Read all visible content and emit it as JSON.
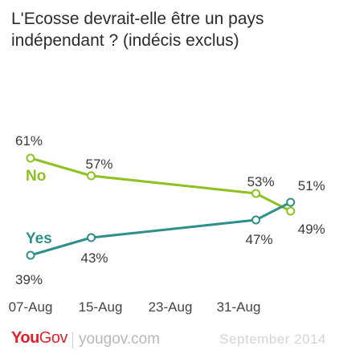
{
  "title_line1": "L'Ecosse devrait-elle être un pays",
  "title_line2": "indépendant ? (indécis exclus)",
  "chart_data": {
    "type": "line",
    "title": "L'Ecosse devrait-elle être un pays indépendant ? (indécis exclus)",
    "x": [
      "2014-08-07",
      "2014-08-14",
      "2014-09-02",
      "2014-09-06"
    ],
    "xticks": [
      "07-Aug",
      "15-Aug",
      "23-Aug",
      "31-Aug"
    ],
    "series": [
      {
        "name": "No",
        "color": "#8dc21f",
        "values": [
          61,
          57,
          53,
          49
        ],
        "labels": [
          "61%",
          "57%",
          "53%",
          "49%"
        ]
      },
      {
        "name": "Yes",
        "color": "#2f8f8a",
        "values": [
          39,
          43,
          47,
          51
        ],
        "labels": [
          "39%",
          "43%",
          "47%",
          "51%"
        ]
      }
    ],
    "ylim": [
      35,
      65
    ],
    "grid": false,
    "legend": "inline-left"
  },
  "footer": {
    "logo_you": "You",
    "logo_gov": "Gov",
    "site": "yougov.com",
    "date": "September 2014"
  }
}
